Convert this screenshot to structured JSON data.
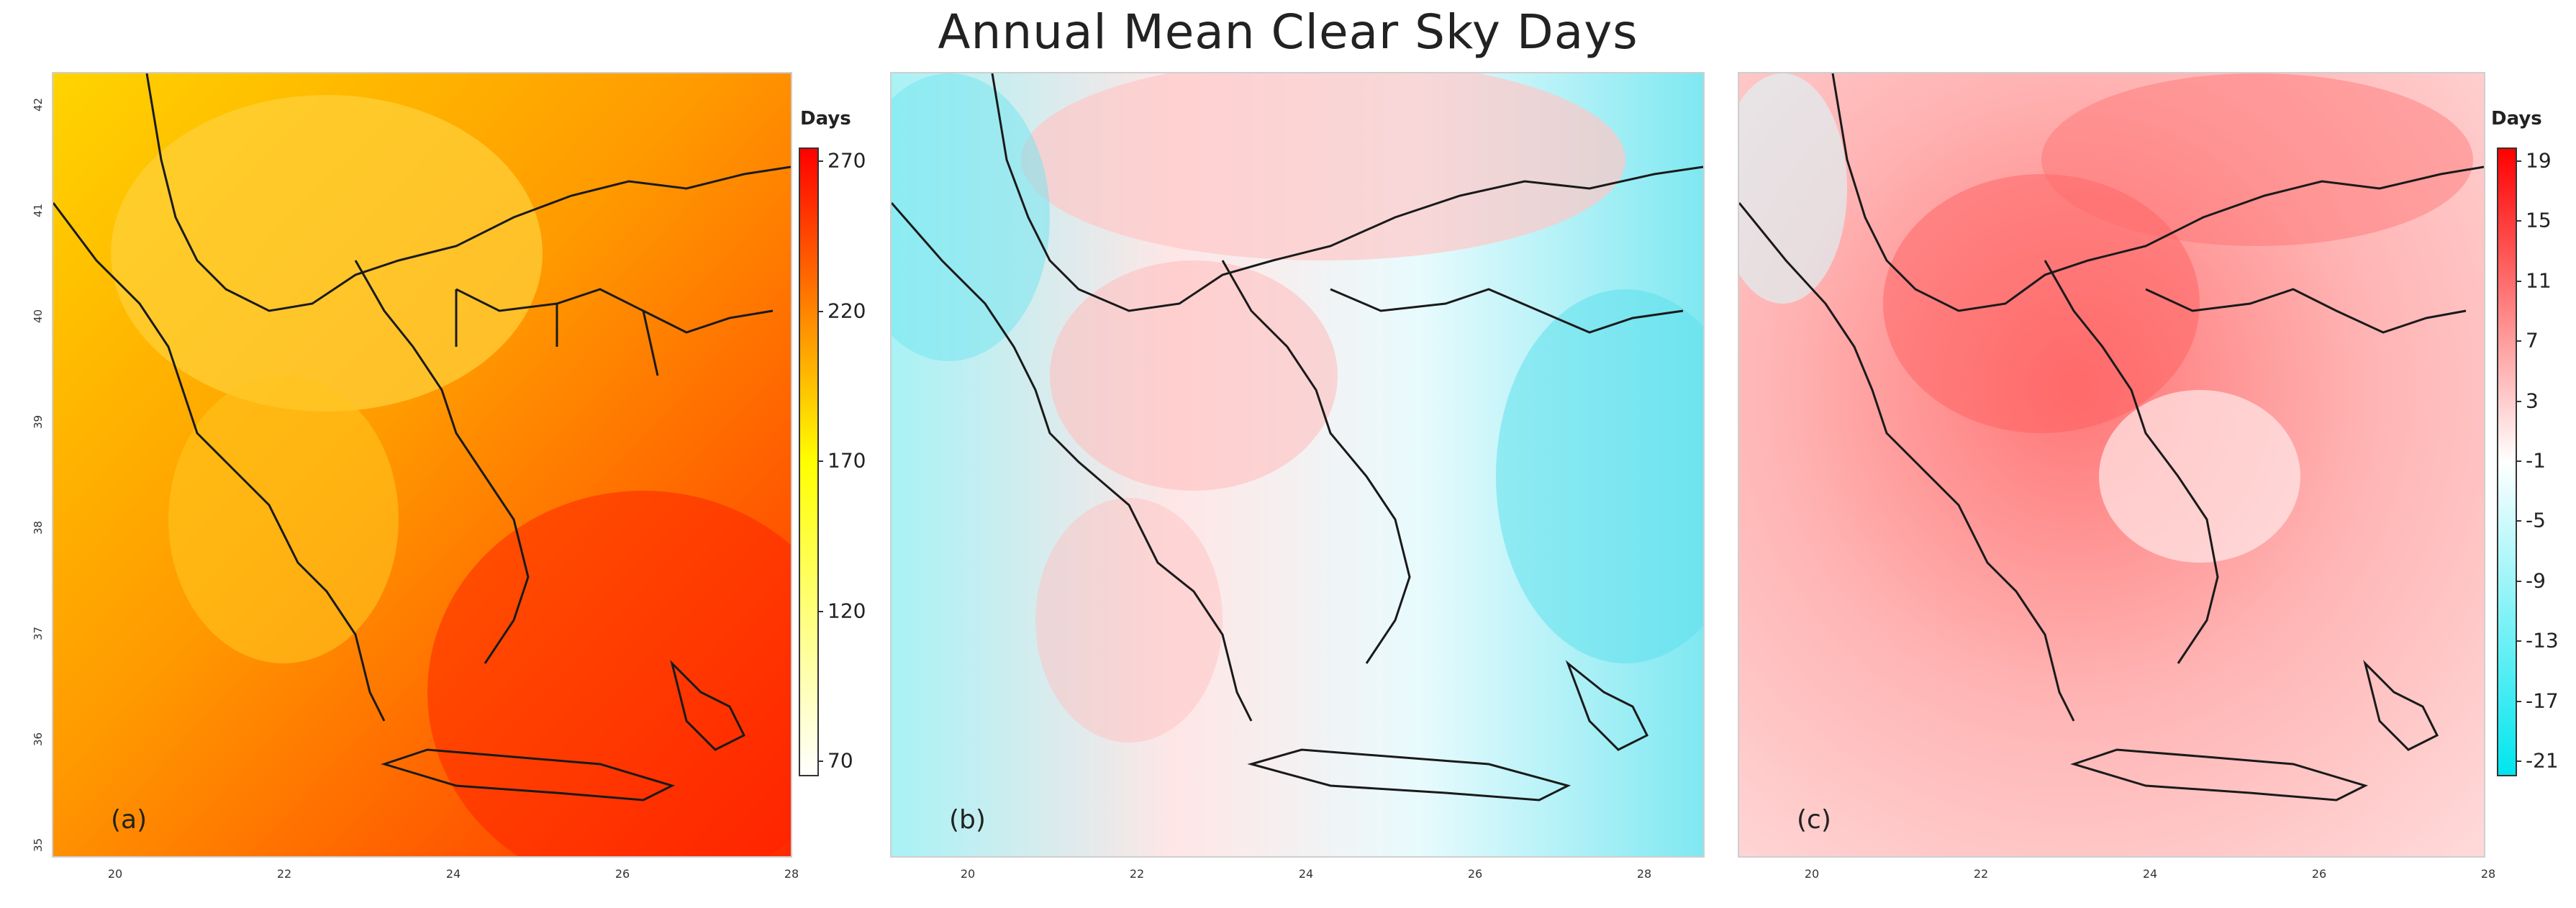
{
  "title": "Annual Mean Clear Sky Days",
  "panels": [
    {
      "label": "(a)"
    },
    {
      "label": "(b)"
    },
    {
      "label": "(c)"
    }
  ],
  "lat_labels": [
    "42",
    "41",
    "40",
    "39",
    "38",
    "37",
    "36",
    "35"
  ],
  "lon_labels": [
    "20",
    "22",
    "24",
    "26",
    "28"
  ],
  "colorbar_a": {
    "title": "Days",
    "ticks": [
      "270",
      "220",
      "170",
      "120",
      "70"
    ],
    "colors": [
      "#ffffff",
      "#ffff00",
      "#ff0000"
    ]
  },
  "colorbar_c": {
    "title": "Days",
    "ticks": [
      "19",
      "15",
      "11",
      "7",
      "3",
      "-1",
      "-5",
      "-9",
      "-13",
      "-17",
      "-21"
    ],
    "colors": [
      "#00e5ee",
      "#ffffff",
      "#ff0000"
    ]
  }
}
